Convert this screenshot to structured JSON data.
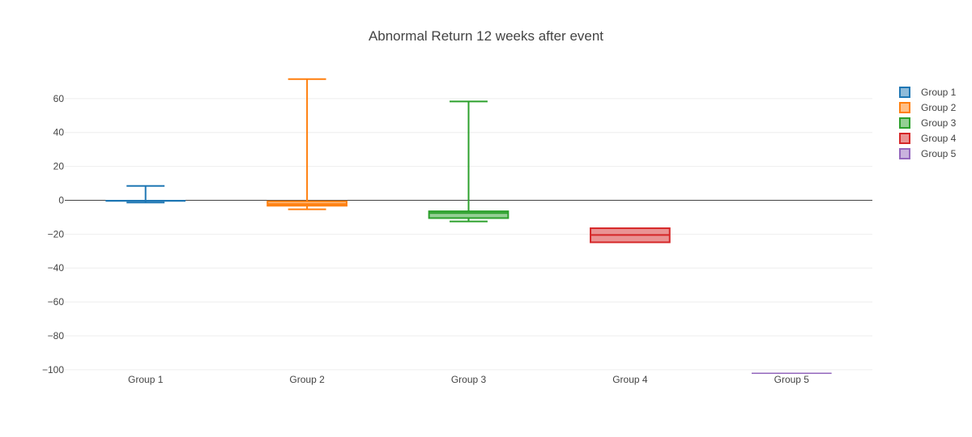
{
  "chart_data": {
    "type": "box",
    "title": "Abnormal Return 12 weeks after event",
    "xlabel": "",
    "ylabel": "",
    "ylim": [
      -101.5,
      80
    ],
    "yticks": [
      -100,
      -80,
      -60,
      -40,
      -20,
      0,
      20,
      40,
      60
    ],
    "grid": true,
    "legend_position": "top-right",
    "categories": [
      "Group 1",
      "Group 2",
      "Group 3",
      "Group 4",
      "Group 5"
    ],
    "series": [
      {
        "name": "Group 1",
        "color": "#1f77b4",
        "min": -1.3,
        "q1": -0.6,
        "median": -0.3,
        "q3": 0.0,
        "max": 8.5
      },
      {
        "name": "Group 2",
        "color": "#ff7f0e",
        "min": -5.3,
        "q1": -3.2,
        "median": -2.2,
        "q3": -0.6,
        "max": 71.5
      },
      {
        "name": "Group 3",
        "color": "#2ca02c",
        "min": -12.5,
        "q1": -10.5,
        "median": -7.5,
        "q3": -6.5,
        "max": 58.3
      },
      {
        "name": "Group 4",
        "color": "#d62728",
        "min": -24.8,
        "q1": -24.8,
        "median": -20.5,
        "q3": -16.5,
        "max": -16.5
      },
      {
        "name": "Group 5",
        "color": "#9467bd",
        "min": -102,
        "q1": -102,
        "median": -102,
        "q3": -102,
        "max": -102
      }
    ]
  }
}
